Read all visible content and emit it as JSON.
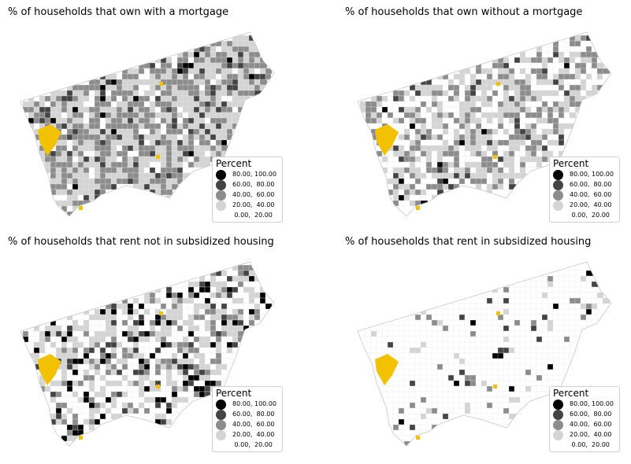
{
  "colors": {
    "highlight": "#f2c200",
    "outline": "#c8c8c8",
    "classes": [
      "#000000",
      "#444444",
      "#8c8c8c",
      "#d4d4d4",
      "#ffffff"
    ]
  },
  "legend": {
    "title": "Percent",
    "entries": [
      {
        "label": "80.00, 100.00",
        "color": "#000000"
      },
      {
        "label": "60.00,  80.00",
        "color": "#444444"
      },
      {
        "label": "40.00,  60.00",
        "color": "#8c8c8c"
      },
      {
        "label": "20.00,  40.00",
        "color": "#d4d4d4"
      },
      {
        "label": " 0.00,  20.00",
        "color": "#ffffff"
      }
    ]
  },
  "maps": [
    {
      "title": "% of households that own with a mortgage",
      "class_weights": [
        0.02,
        0.1,
        0.38,
        0.4,
        0.1
      ]
    },
    {
      "title": "% of households that own without a mortgage",
      "class_weights": [
        0.01,
        0.05,
        0.22,
        0.35,
        0.37
      ]
    },
    {
      "title": "% of households that rent not in subsidized housing",
      "class_weights": [
        0.1,
        0.08,
        0.12,
        0.3,
        0.4
      ]
    },
    {
      "title": "% of households that rent in subsidized housing",
      "class_weights": [
        0.01,
        0.02,
        0.03,
        0.04,
        0.9
      ]
    }
  ]
}
